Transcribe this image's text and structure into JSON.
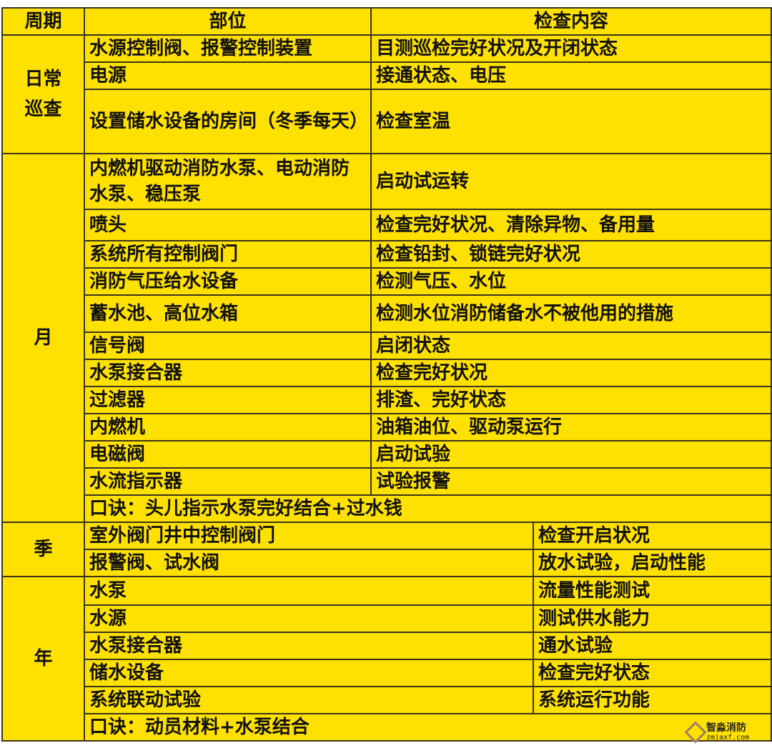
{
  "colors": {
    "background": "#FFE100",
    "border": "#3a3320"
  },
  "header": {
    "period": "周期",
    "part": "部位",
    "content": "检查内容"
  },
  "daily": {
    "period": "日常巡查",
    "rows": [
      {
        "part": "水源控制阀、报警控制装置",
        "content": "目测巡检完好状况及开闭状态"
      },
      {
        "part": "电源",
        "content": "接通状态、电压"
      },
      {
        "part": "设置储水设备的房间（冬季每天）",
        "content": "检查室温"
      }
    ]
  },
  "monthly": {
    "period": "月",
    "rows": [
      {
        "part": "内燃机驱动消防水泵、电动消防水泵、稳压泵",
        "content": "启动试运转"
      },
      {
        "part": "喷头",
        "content": "检查完好状况、清除异物、备用量"
      },
      {
        "part": "系统所有控制阀门",
        "content": "检查铅封、锁链完好状况"
      },
      {
        "part": "消防气压给水设备",
        "content": "检测气压、水位"
      },
      {
        "part": "蓄水池、高位水箱",
        "content": "检测水位消防储备水不被他用的措施"
      },
      {
        "part": "信号阀",
        "content": "启闭状态"
      },
      {
        "part": "水泵接合器",
        "content": "检查完好状况"
      },
      {
        "part": "过滤器",
        "content": "排渣、完好状态"
      },
      {
        "part": "内燃机",
        "content": "油箱油位、驱动泵运行"
      },
      {
        "part": "电磁阀",
        "content": "启动试验"
      },
      {
        "part": "水流指示器",
        "content": "试验报警"
      }
    ],
    "mnemonic": "口诀：头儿指示水泵完好结合+过水钱"
  },
  "quarterly": {
    "period": "季",
    "rows": [
      {
        "part": "室外阀门井中控制阀门",
        "content": "检查开启状况"
      },
      {
        "part": "报警阀、试水阀",
        "content": "放水试验，启动性能"
      }
    ]
  },
  "yearly": {
    "period": "年",
    "rows": [
      {
        "part": "水泵",
        "content": "流量性能测试"
      },
      {
        "part": "水源",
        "content": "测试供水能力"
      },
      {
        "part": "水泵接合器",
        "content": "通水试验"
      },
      {
        "part": "储水设备",
        "content": "检查完好状态"
      },
      {
        "part": "系统联动试验",
        "content": "系统运行功能"
      }
    ],
    "mnemonic": "口诀：动员材料+水泵结合"
  },
  "watermark": {
    "name": "智淼消防",
    "site": "zmjaxf.com"
  }
}
